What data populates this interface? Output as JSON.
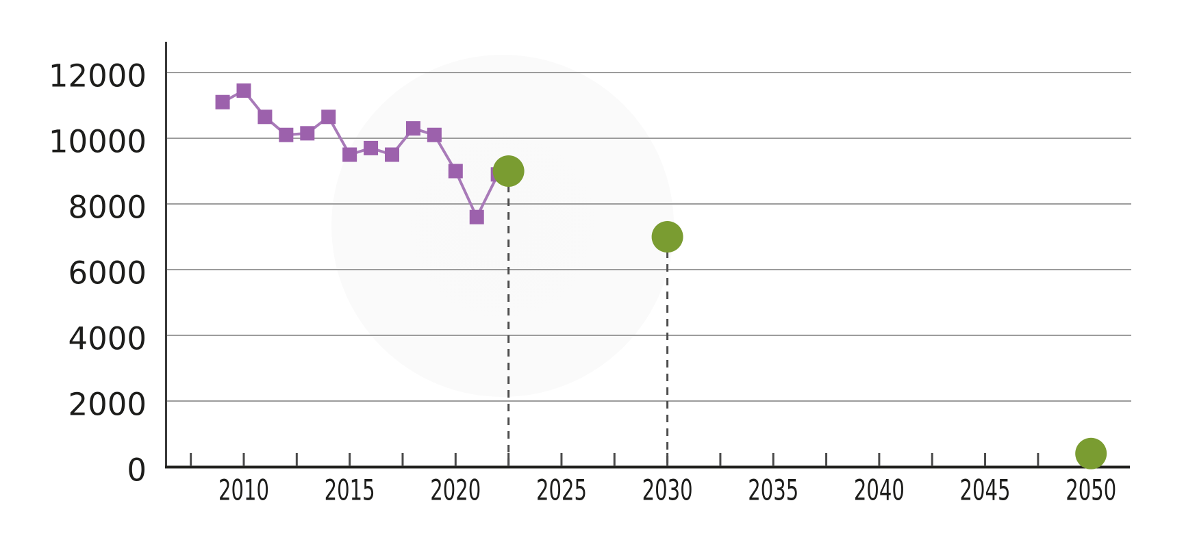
{
  "chart_data": {
    "type": "line",
    "title": "",
    "xlabel": "",
    "ylabel": "",
    "grid": "horizontal-only",
    "legend": "none",
    "x_axis": {
      "range": [
        2006.3,
        2051.9
      ],
      "labeled_ticks": [
        "2010",
        "2015",
        "2020",
        "2025",
        "2030",
        "2035",
        "2040",
        "2045",
        "2050"
      ],
      "labeled_tick_years": [
        2010,
        2015,
        2020,
        2025,
        2030,
        2035,
        2040,
        2045,
        2050
      ],
      "minor_tick_years": [
        2007.5,
        2012.5,
        2017.5,
        2022.5,
        2027.5,
        2032.5,
        2037.5,
        2042.5,
        2047.5
      ]
    },
    "y_axis": {
      "range": [
        0,
        13000
      ],
      "tick_labels": [
        "0",
        "2000",
        "4000",
        "6000",
        "8000",
        "10000",
        "12000"
      ],
      "tick_values": [
        0,
        2000,
        4000,
        6000,
        8000,
        10000,
        12000
      ],
      "gridline_values": [
        2000,
        4000,
        6000,
        8000,
        10000,
        12000
      ]
    },
    "series": [
      {
        "name": "historical-line",
        "type": "line",
        "marker": "square",
        "marker_color": "#9c61ac",
        "line_color": "#a87ab8",
        "x": [
          2009,
          2010,
          2011,
          2012,
          2013,
          2014,
          2015,
          2016,
          2017,
          2018,
          2019,
          2020,
          2021,
          2022
        ],
        "y": [
          11100,
          11450,
          10650,
          10100,
          10150,
          10650,
          9500,
          9700,
          9500,
          10300,
          10100,
          9000,
          7600,
          8900
        ]
      },
      {
        "name": "projection-targets",
        "type": "scatter",
        "marker": "circle",
        "marker_color": "#7a9c31",
        "drop_line_style": "dashed",
        "points": [
          {
            "x": 2022.5,
            "y": 9000
          },
          {
            "x": 2030,
            "y": 7000
          },
          {
            "x": 2050,
            "y": 400
          }
        ]
      }
    ]
  },
  "style": {
    "background": "#ffffff",
    "axis_color": "#3a3a3a",
    "baseline_color": "#22221f",
    "gridline_color": "#9c9c9c",
    "tick_color": "#4a4a4a",
    "tick_label_color": "#1d1d1b",
    "dashed_line_color": "#4d4d4d",
    "historical_marker_color": "#9c61ac",
    "historical_line_color": "#a87ab8",
    "target_dot_color": "#7a9c31"
  }
}
